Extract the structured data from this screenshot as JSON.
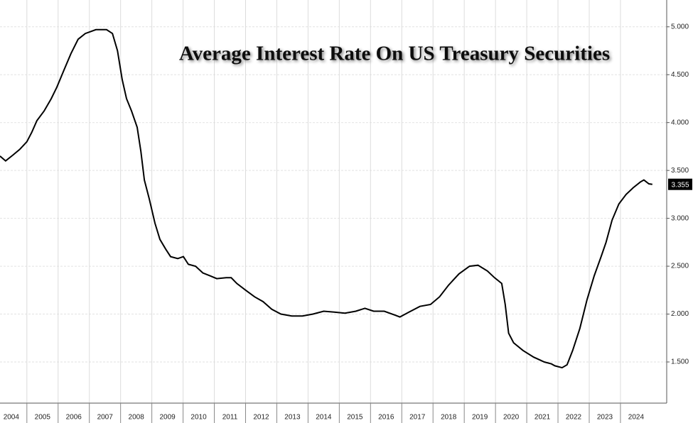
{
  "chart_data": {
    "type": "line",
    "title": "Average Interest Rate On US Treasury Securities",
    "x": [
      2004.14,
      2004.32,
      2004.55,
      2004.77,
      2005.0,
      2005.16,
      2005.32,
      2005.55,
      2005.78,
      2005.96,
      2006.19,
      2006.41,
      2006.64,
      2006.87,
      2007.21,
      2007.55,
      2007.74,
      2007.9,
      2008.05,
      2008.19,
      2008.35,
      2008.53,
      2008.65,
      2008.76,
      2008.92,
      2009.1,
      2009.26,
      2009.44,
      2009.6,
      2009.83,
      2010.01,
      2010.17,
      2010.4,
      2010.63,
      2010.86,
      2011.08,
      2011.38,
      2011.54,
      2011.72,
      2012.0,
      2012.29,
      2012.56,
      2012.84,
      2013.13,
      2013.48,
      2013.82,
      2014.16,
      2014.5,
      2014.84,
      2015.18,
      2015.53,
      2015.82,
      2016.1,
      2016.44,
      2016.78,
      2016.94,
      2017.23,
      2017.58,
      2017.92,
      2018.21,
      2018.49,
      2018.83,
      2019.17,
      2019.44,
      2019.74,
      2019.97,
      2020.2,
      2020.31,
      2020.42,
      2020.58,
      2020.88,
      2021.22,
      2021.56,
      2021.79,
      2021.9,
      2022.13,
      2022.29,
      2022.47,
      2022.7,
      2022.93,
      2023.16,
      2023.38,
      2023.54,
      2023.73,
      2023.95,
      2024.18,
      2024.41,
      2024.64,
      2024.75,
      2024.91,
      2025.02
    ],
    "values": [
      3.65,
      3.6,
      3.66,
      3.72,
      3.8,
      3.9,
      4.02,
      4.12,
      4.25,
      4.37,
      4.55,
      4.72,
      4.87,
      4.93,
      4.97,
      4.97,
      4.93,
      4.75,
      4.45,
      4.25,
      4.12,
      3.95,
      3.7,
      3.4,
      3.2,
      2.95,
      2.78,
      2.68,
      2.6,
      2.58,
      2.6,
      2.52,
      2.5,
      2.43,
      2.4,
      2.37,
      2.38,
      2.38,
      2.32,
      2.25,
      2.18,
      2.13,
      2.05,
      2.0,
      1.98,
      1.98,
      2.0,
      2.03,
      2.02,
      2.01,
      2.03,
      2.06,
      2.03,
      2.03,
      1.99,
      1.97,
      2.02,
      2.08,
      2.1,
      2.18,
      2.3,
      2.42,
      2.5,
      2.51,
      2.45,
      2.38,
      2.32,
      2.1,
      1.8,
      1.7,
      1.62,
      1.55,
      1.5,
      1.48,
      1.46,
      1.44,
      1.47,
      1.62,
      1.85,
      2.15,
      2.4,
      2.6,
      2.75,
      2.98,
      3.15,
      3.25,
      3.32,
      3.38,
      3.4,
      3.36,
      3.355
    ],
    "color": "#000000",
    "xlim": [
      2004.14,
      2025.48
    ],
    "xticks": [
      2004,
      2005,
      2006,
      2007,
      2008,
      2009,
      2010,
      2011,
      2012,
      2013,
      2014,
      2015,
      2016,
      2017,
      2018,
      2019,
      2020,
      2021,
      2022,
      2023,
      2024
    ],
    "ylim": [
      1.07,
      5.28
    ],
    "yticks": [
      {
        "value": 1.5,
        "label": "1.500"
      },
      {
        "value": 2,
        "label": "2.000"
      },
      {
        "value": 2.5,
        "label": "2.500"
      },
      {
        "value": 3,
        "label": "3.000"
      },
      {
        "value": 3.5,
        "label": "3.500"
      },
      {
        "value": 4,
        "label": "4.000"
      },
      {
        "value": 4.5,
        "label": "4.500"
      },
      {
        "value": 5,
        "label": "5.000"
      }
    ],
    "grid": true
  }
}
